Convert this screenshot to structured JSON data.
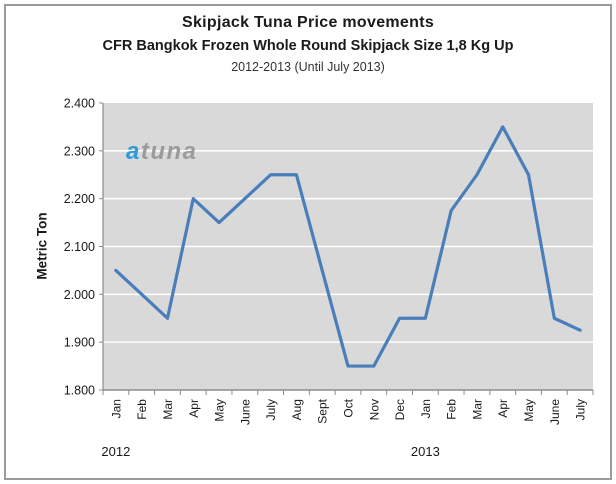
{
  "header": {
    "title": "Skipjack Tuna Price movements",
    "subtitle": "CFR Bangkok Frozen Whole Round Skipjack Size 1,8 Kg Up",
    "period": "2012-2013 (Until July 2013)"
  },
  "watermark": {
    "prefix": "a",
    "rest": "tuna",
    "prefix_color": "#2e9bd6",
    "rest_color": "#9b9b9b"
  },
  "frame_border_color": "#9a9a9a",
  "chart_data": {
    "type": "line",
    "title": "Skipjack Tuna Price movements",
    "xlabel": "",
    "ylabel": "Metric Ton",
    "categories": [
      "Jan",
      "Feb",
      "Mar",
      "Apr",
      "May",
      "June",
      "July",
      "Aug",
      "Sept",
      "Oct",
      "Nov",
      "Dec",
      "Jan",
      "Feb",
      "Mar",
      "Apr",
      "May",
      "June",
      "July"
    ],
    "year_groups": [
      {
        "label": "2012",
        "start_index": 0
      },
      {
        "label": "2013",
        "start_index": 12
      }
    ],
    "values": [
      2050,
      2000,
      1950,
      2200,
      2150,
      2200,
      2250,
      2250,
      2050,
      1850,
      1850,
      1950,
      1950,
      2175,
      2250,
      2350,
      2250,
      1950,
      1925
    ],
    "ylim": [
      1800,
      2400
    ],
    "ytick_step": 100,
    "ytick_labels": [
      "1.800",
      "1.900",
      "2.000",
      "2.100",
      "2.200",
      "2.300",
      "2.400"
    ],
    "grid": true,
    "legend": "none",
    "line_color": "#4a7ebb",
    "plot_bg": "#d9d9d9",
    "gridline_color": "#ffffff",
    "axis_color": "#8c8c8c",
    "tick_label_color": "#1a1a1a"
  }
}
